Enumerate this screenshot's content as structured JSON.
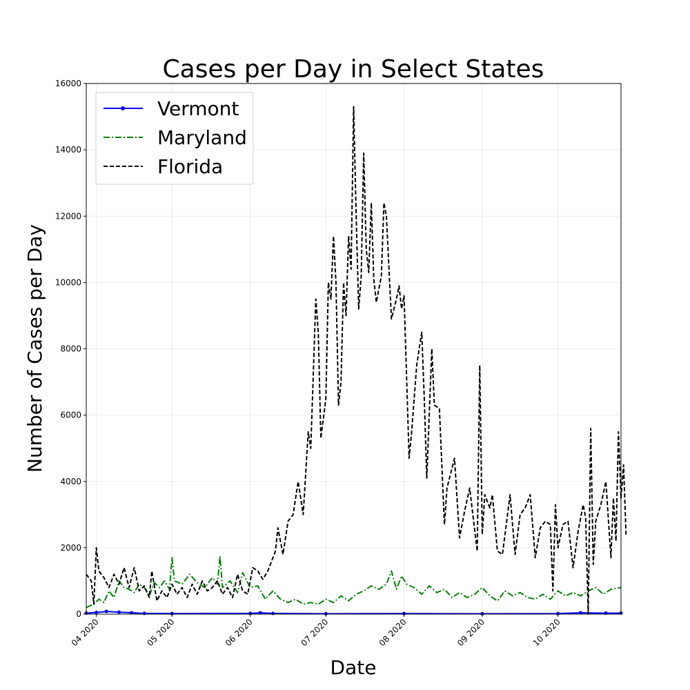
{
  "chart_data": {
    "type": "line",
    "title": "Cases per Day in Select States",
    "xlabel": "Date",
    "ylabel": "Number of Cases per Day",
    "x_type": "date",
    "x_range": [
      "2020-03-28",
      "2020-10-26"
    ],
    "ylim": [
      0,
      16000
    ],
    "y_ticks": [
      0,
      2000,
      4000,
      6000,
      8000,
      10000,
      12000,
      14000,
      16000
    ],
    "x_ticks": [
      {
        "date": "2020-04-01",
        "label": "04 2020"
      },
      {
        "date": "2020-05-01",
        "label": "05 2020"
      },
      {
        "date": "2020-06-01",
        "label": "06 2020"
      },
      {
        "date": "2020-07-01",
        "label": "07 2020"
      },
      {
        "date": "2020-08-01",
        "label": "08 2020"
      },
      {
        "date": "2020-09-01",
        "label": "09 2020"
      },
      {
        "date": "2020-10-01",
        "label": "10 2020"
      }
    ],
    "grid": true,
    "legend_position": "top-left",
    "series": [
      {
        "name": "Vermont",
        "color": "#0000ff",
        "style": "solid-dots",
        "points": [
          [
            "2020-03-28",
            30
          ],
          [
            "2020-04-01",
            50
          ],
          [
            "2020-04-05",
            80
          ],
          [
            "2020-04-10",
            60
          ],
          [
            "2020-04-15",
            40
          ],
          [
            "2020-04-20",
            20
          ],
          [
            "2020-05-01",
            15
          ],
          [
            "2020-06-01",
            20
          ],
          [
            "2020-06-05",
            40
          ],
          [
            "2020-06-10",
            20
          ],
          [
            "2020-07-01",
            10
          ],
          [
            "2020-08-01",
            15
          ],
          [
            "2020-09-01",
            10
          ],
          [
            "2020-10-01",
            15
          ],
          [
            "2020-10-10",
            40
          ],
          [
            "2020-10-20",
            30
          ],
          [
            "2020-10-26",
            30
          ]
        ]
      },
      {
        "name": "Maryland",
        "color": "#008000",
        "style": "dashdot",
        "points": [
          [
            "2020-03-28",
            200
          ],
          [
            "2020-03-31",
            300
          ],
          [
            "2020-04-02",
            450
          ],
          [
            "2020-04-04",
            350
          ],
          [
            "2020-04-06",
            700
          ],
          [
            "2020-04-08",
            500
          ],
          [
            "2020-04-10",
            1000
          ],
          [
            "2020-04-12",
            800
          ],
          [
            "2020-04-14",
            750
          ],
          [
            "2020-04-16",
            650
          ],
          [
            "2020-04-18",
            900
          ],
          [
            "2020-04-20",
            800
          ],
          [
            "2020-04-22",
            550
          ],
          [
            "2020-04-24",
            950
          ],
          [
            "2020-04-26",
            800
          ],
          [
            "2020-04-28",
            1000
          ],
          [
            "2020-04-30",
            750
          ],
          [
            "2020-05-01",
            1700
          ],
          [
            "2020-05-02",
            1000
          ],
          [
            "2020-05-05",
            900
          ],
          [
            "2020-05-08",
            1200
          ],
          [
            "2020-05-11",
            950
          ],
          [
            "2020-05-14",
            800
          ],
          [
            "2020-05-17",
            1100
          ],
          [
            "2020-05-19",
            900
          ],
          [
            "2020-05-20",
            1750
          ],
          [
            "2020-05-21",
            800
          ],
          [
            "2020-05-24",
            1000
          ],
          [
            "2020-05-27",
            650
          ],
          [
            "2020-05-29",
            1250
          ],
          [
            "2020-06-01",
            800
          ],
          [
            "2020-06-04",
            850
          ],
          [
            "2020-06-07",
            450
          ],
          [
            "2020-06-10",
            700
          ],
          [
            "2020-06-13",
            450
          ],
          [
            "2020-06-16",
            350
          ],
          [
            "2020-06-19",
            450
          ],
          [
            "2020-06-22",
            300
          ],
          [
            "2020-06-25",
            350
          ],
          [
            "2020-06-28",
            300
          ],
          [
            "2020-07-01",
            450
          ],
          [
            "2020-07-04",
            350
          ],
          [
            "2020-07-07",
            550
          ],
          [
            "2020-07-10",
            400
          ],
          [
            "2020-07-13",
            600
          ],
          [
            "2020-07-16",
            700
          ],
          [
            "2020-07-19",
            850
          ],
          [
            "2020-07-22",
            750
          ],
          [
            "2020-07-25",
            900
          ],
          [
            "2020-07-27",
            1300
          ],
          [
            "2020-07-29",
            750
          ],
          [
            "2020-07-31",
            1150
          ],
          [
            "2020-08-02",
            900
          ],
          [
            "2020-08-05",
            800
          ],
          [
            "2020-08-08",
            600
          ],
          [
            "2020-08-11",
            850
          ],
          [
            "2020-08-14",
            650
          ],
          [
            "2020-08-17",
            750
          ],
          [
            "2020-08-20",
            500
          ],
          [
            "2020-08-23",
            650
          ],
          [
            "2020-08-26",
            500
          ],
          [
            "2020-08-29",
            600
          ],
          [
            "2020-09-01",
            800
          ],
          [
            "2020-09-04",
            550
          ],
          [
            "2020-09-07",
            400
          ],
          [
            "2020-09-10",
            700
          ],
          [
            "2020-09-13",
            550
          ],
          [
            "2020-09-16",
            650
          ],
          [
            "2020-09-19",
            500
          ],
          [
            "2020-09-22",
            450
          ],
          [
            "2020-09-25",
            600
          ],
          [
            "2020-09-28",
            450
          ],
          [
            "2020-10-01",
            700
          ],
          [
            "2020-10-04",
            550
          ],
          [
            "2020-10-07",
            650
          ],
          [
            "2020-10-10",
            550
          ],
          [
            "2020-10-13",
            700
          ],
          [
            "2020-10-16",
            800
          ],
          [
            "2020-10-19",
            600
          ],
          [
            "2020-10-22",
            750
          ],
          [
            "2020-10-26",
            800
          ]
        ]
      },
      {
        "name": "Florida",
        "color": "#000000",
        "style": "dashed",
        "points": [
          [
            "2020-03-28",
            1200
          ],
          [
            "2020-03-30",
            1000
          ],
          [
            "2020-03-31",
            300
          ],
          [
            "2020-04-01",
            2000
          ],
          [
            "2020-04-02",
            1300
          ],
          [
            "2020-04-04",
            1100
          ],
          [
            "2020-04-06",
            800
          ],
          [
            "2020-04-08",
            1200
          ],
          [
            "2020-04-10",
            900
          ],
          [
            "2020-04-12",
            1400
          ],
          [
            "2020-04-14",
            800
          ],
          [
            "2020-04-16",
            1400
          ],
          [
            "2020-04-18",
            700
          ],
          [
            "2020-04-20",
            850
          ],
          [
            "2020-04-22",
            500
          ],
          [
            "2020-04-23",
            1300
          ],
          [
            "2020-04-25",
            400
          ],
          [
            "2020-04-27",
            700
          ],
          [
            "2020-04-29",
            500
          ],
          [
            "2020-05-01",
            900
          ],
          [
            "2020-05-03",
            600
          ],
          [
            "2020-05-05",
            800
          ],
          [
            "2020-05-07",
            500
          ],
          [
            "2020-05-09",
            900
          ],
          [
            "2020-05-11",
            600
          ],
          [
            "2020-05-13",
            1000
          ],
          [
            "2020-05-15",
            700
          ],
          [
            "2020-05-17",
            800
          ],
          [
            "2020-05-19",
            1000
          ],
          [
            "2020-05-21",
            600
          ],
          [
            "2020-05-23",
            800
          ],
          [
            "2020-05-25",
            500
          ],
          [
            "2020-05-27",
            1200
          ],
          [
            "2020-05-29",
            700
          ],
          [
            "2020-05-31",
            600
          ],
          [
            "2020-06-02",
            1400
          ],
          [
            "2020-06-04",
            1300
          ],
          [
            "2020-06-06",
            1050
          ],
          [
            "2020-06-08",
            1300
          ],
          [
            "2020-06-11",
            1900
          ],
          [
            "2020-06-12",
            2600
          ],
          [
            "2020-06-14",
            1800
          ],
          [
            "2020-06-16",
            2800
          ],
          [
            "2020-06-18",
            3000
          ],
          [
            "2020-06-20",
            4000
          ],
          [
            "2020-06-22",
            3000
          ],
          [
            "2020-06-24",
            5500
          ],
          [
            "2020-06-25",
            5000
          ],
          [
            "2020-06-27",
            9500
          ],
          [
            "2020-06-28",
            8500
          ],
          [
            "2020-06-29",
            5300
          ],
          [
            "2020-07-01",
            6500
          ],
          [
            "2020-07-02",
            10000
          ],
          [
            "2020-07-03",
            9500
          ],
          [
            "2020-07-04",
            11400
          ],
          [
            "2020-07-05",
            10000
          ],
          [
            "2020-07-06",
            6300
          ],
          [
            "2020-07-07",
            7000
          ],
          [
            "2020-07-08",
            10000
          ],
          [
            "2020-07-09",
            9000
          ],
          [
            "2020-07-10",
            11400
          ],
          [
            "2020-07-11",
            10400
          ],
          [
            "2020-07-12",
            15300
          ],
          [
            "2020-07-13",
            12000
          ],
          [
            "2020-07-14",
            9200
          ],
          [
            "2020-07-15",
            10200
          ],
          [
            "2020-07-16",
            13900
          ],
          [
            "2020-07-17",
            11000
          ],
          [
            "2020-07-18",
            10300
          ],
          [
            "2020-07-19",
            12400
          ],
          [
            "2020-07-20",
            10100
          ],
          [
            "2020-07-21",
            9400
          ],
          [
            "2020-07-22",
            9800
          ],
          [
            "2020-07-23",
            10200
          ],
          [
            "2020-07-24",
            12400
          ],
          [
            "2020-07-25",
            12000
          ],
          [
            "2020-07-27",
            8900
          ],
          [
            "2020-07-29",
            9500
          ],
          [
            "2020-07-30",
            9900
          ],
          [
            "2020-07-31",
            9200
          ],
          [
            "2020-08-01",
            9600
          ],
          [
            "2020-08-03",
            4700
          ],
          [
            "2020-08-04",
            5500
          ],
          [
            "2020-08-06",
            7500
          ],
          [
            "2020-08-08",
            8500
          ],
          [
            "2020-08-09",
            6500
          ],
          [
            "2020-08-10",
            4100
          ],
          [
            "2020-08-12",
            8000
          ],
          [
            "2020-08-13",
            6300
          ],
          [
            "2020-08-15",
            6200
          ],
          [
            "2020-08-17",
            2700
          ],
          [
            "2020-08-18",
            3800
          ],
          [
            "2020-08-21",
            4700
          ],
          [
            "2020-08-23",
            2300
          ],
          [
            "2020-08-25",
            3100
          ],
          [
            "2020-08-27",
            3800
          ],
          [
            "2020-08-30",
            1900
          ],
          [
            "2020-08-31",
            7500
          ],
          [
            "2020-09-01",
            2400
          ],
          [
            "2020-09-02",
            3600
          ],
          [
            "2020-09-04",
            3200
          ],
          [
            "2020-09-05",
            3600
          ],
          [
            "2020-09-07",
            1900
          ],
          [
            "2020-09-09",
            1800
          ],
          [
            "2020-09-12",
            3600
          ],
          [
            "2020-09-14",
            1800
          ],
          [
            "2020-09-16",
            3000
          ],
          [
            "2020-09-18",
            3200
          ],
          [
            "2020-09-20",
            3600
          ],
          [
            "2020-09-22",
            1700
          ],
          [
            "2020-09-24",
            2600
          ],
          [
            "2020-09-26",
            2800
          ],
          [
            "2020-09-28",
            2700
          ],
          [
            "2020-09-29",
            700
          ],
          [
            "2020-09-30",
            3300
          ],
          [
            "2020-10-01",
            2000
          ],
          [
            "2020-10-03",
            2700
          ],
          [
            "2020-10-05",
            2800
          ],
          [
            "2020-10-07",
            1400
          ],
          [
            "2020-10-09",
            2500
          ],
          [
            "2020-10-11",
            3300
          ],
          [
            "2020-10-12",
            2900
          ],
          [
            "2020-10-13",
            0
          ],
          [
            "2020-10-14",
            5600
          ],
          [
            "2020-10-15",
            1500
          ],
          [
            "2020-10-16",
            2800
          ],
          [
            "2020-10-18",
            3300
          ],
          [
            "2020-10-20",
            4000
          ],
          [
            "2020-10-22",
            1700
          ],
          [
            "2020-10-23",
            3500
          ],
          [
            "2020-10-24",
            2200
          ],
          [
            "2020-10-25",
            5500
          ],
          [
            "2020-10-26",
            3500
          ],
          [
            "2020-10-27",
            4500
          ],
          [
            "2020-10-28",
            2400
          ]
        ]
      }
    ]
  }
}
